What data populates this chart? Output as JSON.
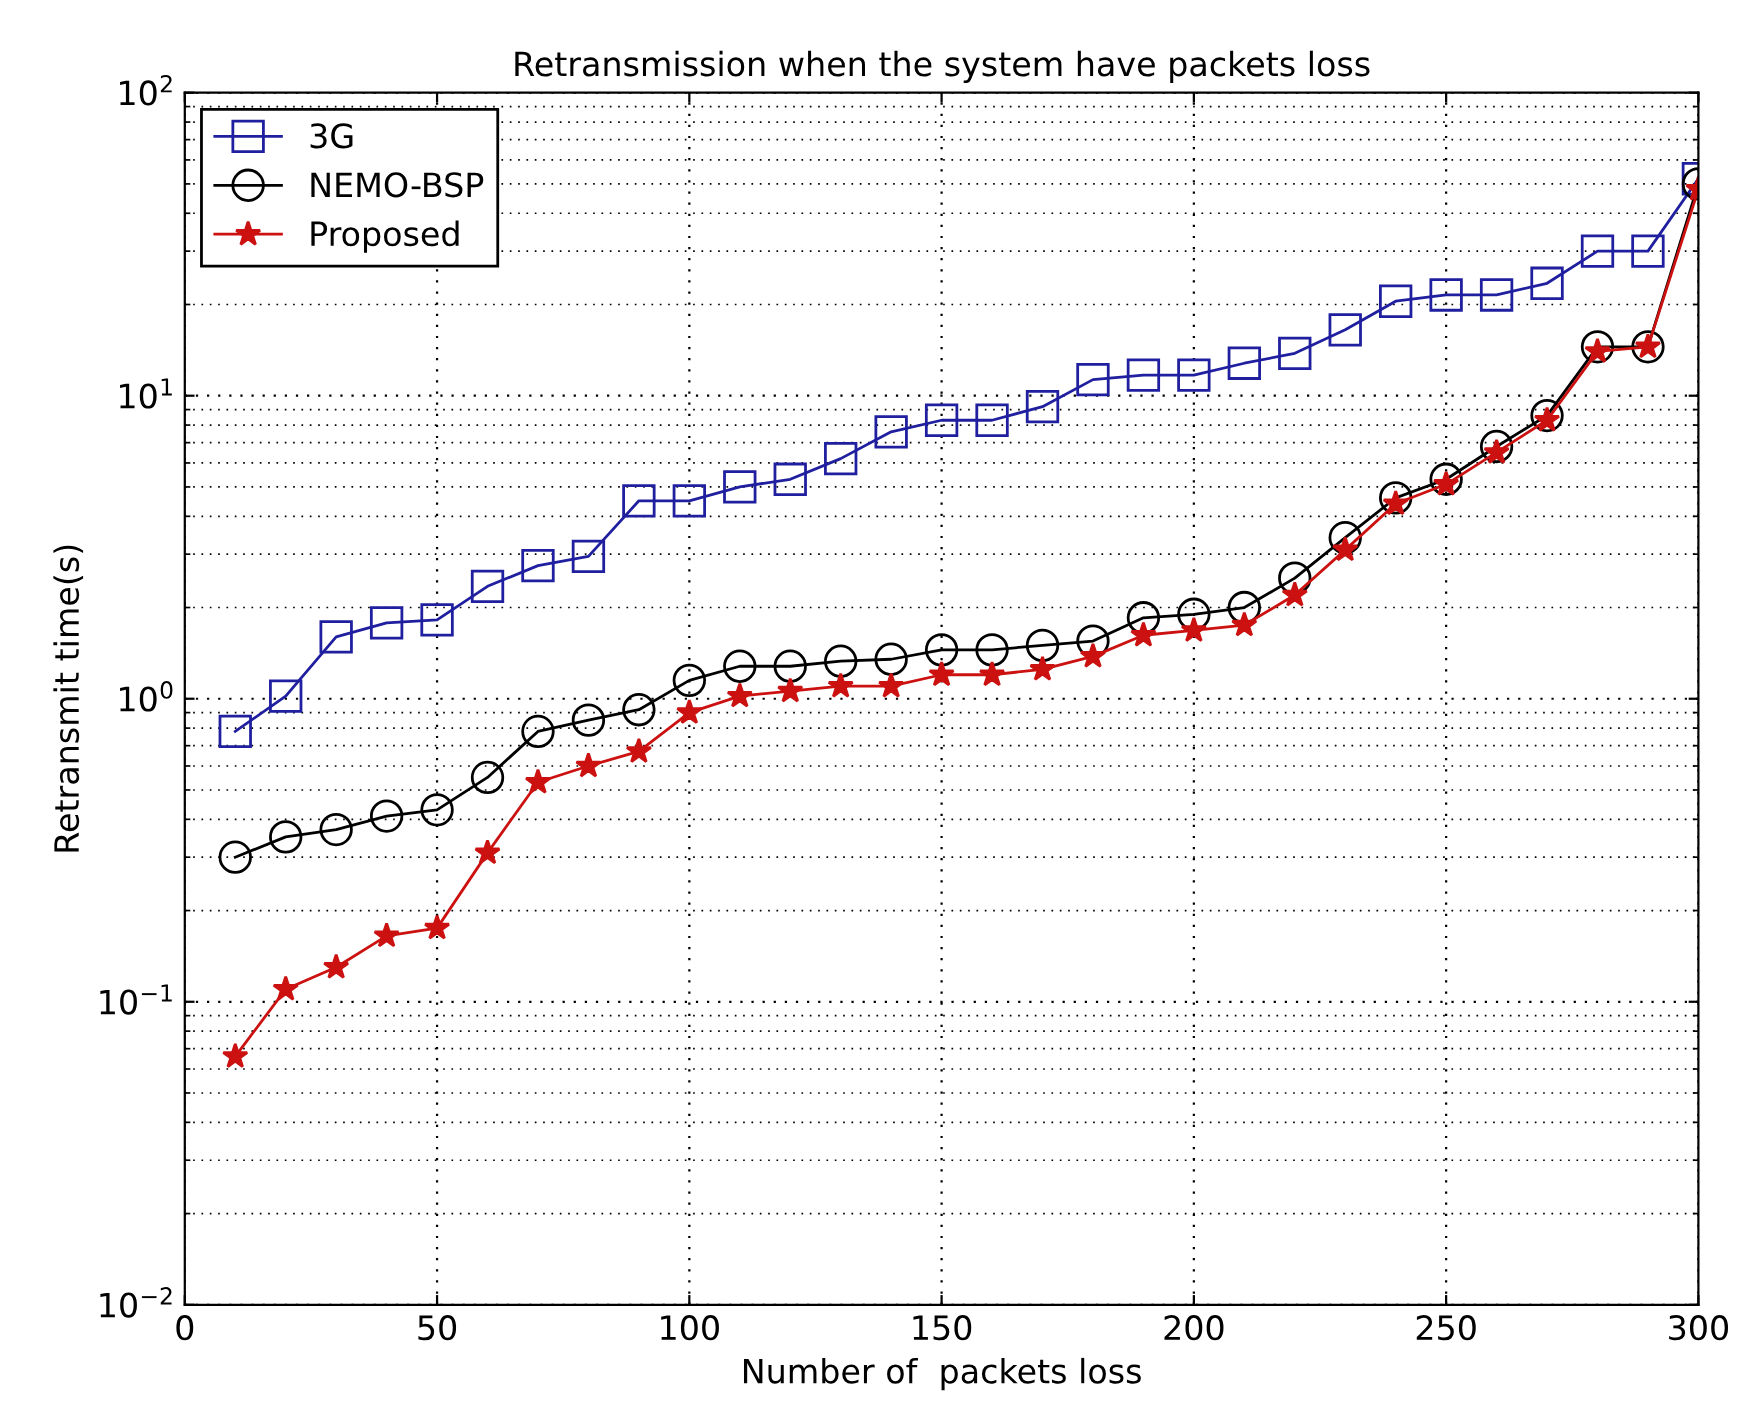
{
  "chart_data": {
    "type": "line",
    "title": "Retransmission when the system have packets loss",
    "xlabel": "Number of  packets loss",
    "ylabel": "Retransmit time(s)",
    "x": [
      10,
      20,
      30,
      40,
      50,
      60,
      70,
      80,
      90,
      100,
      110,
      120,
      130,
      140,
      150,
      160,
      170,
      180,
      190,
      200,
      210,
      220,
      230,
      240,
      250,
      260,
      270,
      280,
      290,
      300
    ],
    "series": [
      {
        "name": "3G",
        "color": "#1f1f9f",
        "marker": "square",
        "values": [
          0.78,
          1.02,
          1.6,
          1.78,
          1.82,
          2.35,
          2.75,
          2.95,
          4.5,
          4.5,
          5.0,
          5.3,
          6.2,
          7.6,
          8.3,
          8.3,
          9.2,
          11.3,
          11.7,
          11.7,
          12.8,
          13.8,
          16.5,
          20.5,
          21.5,
          21.5,
          23.5,
          30,
          30,
          52
        ]
      },
      {
        "name": "NEMO-BSP",
        "color": "#000000",
        "marker": "circle",
        "values": [
          0.3,
          0.35,
          0.37,
          0.41,
          0.43,
          0.55,
          0.78,
          0.85,
          0.92,
          1.15,
          1.28,
          1.28,
          1.33,
          1.35,
          1.45,
          1.45,
          1.5,
          1.55,
          1.85,
          1.9,
          2.0,
          2.5,
          3.4,
          4.6,
          5.3,
          6.8,
          8.6,
          14.5,
          14.5,
          50
        ]
      },
      {
        "name": "Proposed",
        "color": "#cc1111",
        "marker": "star",
        "values": [
          0.066,
          0.11,
          0.13,
          0.165,
          0.175,
          0.31,
          0.53,
          0.6,
          0.67,
          0.9,
          1.02,
          1.06,
          1.1,
          1.1,
          1.2,
          1.2,
          1.25,
          1.38,
          1.62,
          1.68,
          1.75,
          2.2,
          3.1,
          4.4,
          5.1,
          6.5,
          8.3,
          14,
          14.5,
          48
        ]
      }
    ],
    "log": "y",
    "xlim": [
      0,
      300
    ],
    "ylim": [
      0.01,
      100
    ],
    "xticks": [
      0,
      50,
      100,
      150,
      200,
      250,
      300
    ],
    "yticks": [
      {
        "value": 0.01,
        "label": "10$^{−2}$"
      },
      {
        "value": 0.1,
        "label": "10$^{−1}$"
      },
      {
        "value": 1,
        "label": "10$^{0}$"
      },
      {
        "value": 10,
        "label": "10$^{1}$"
      },
      {
        "value": 100,
        "label": "10$^{2}$"
      }
    ],
    "grid": true,
    "legend": "top left",
    "line_style": "solid"
  }
}
